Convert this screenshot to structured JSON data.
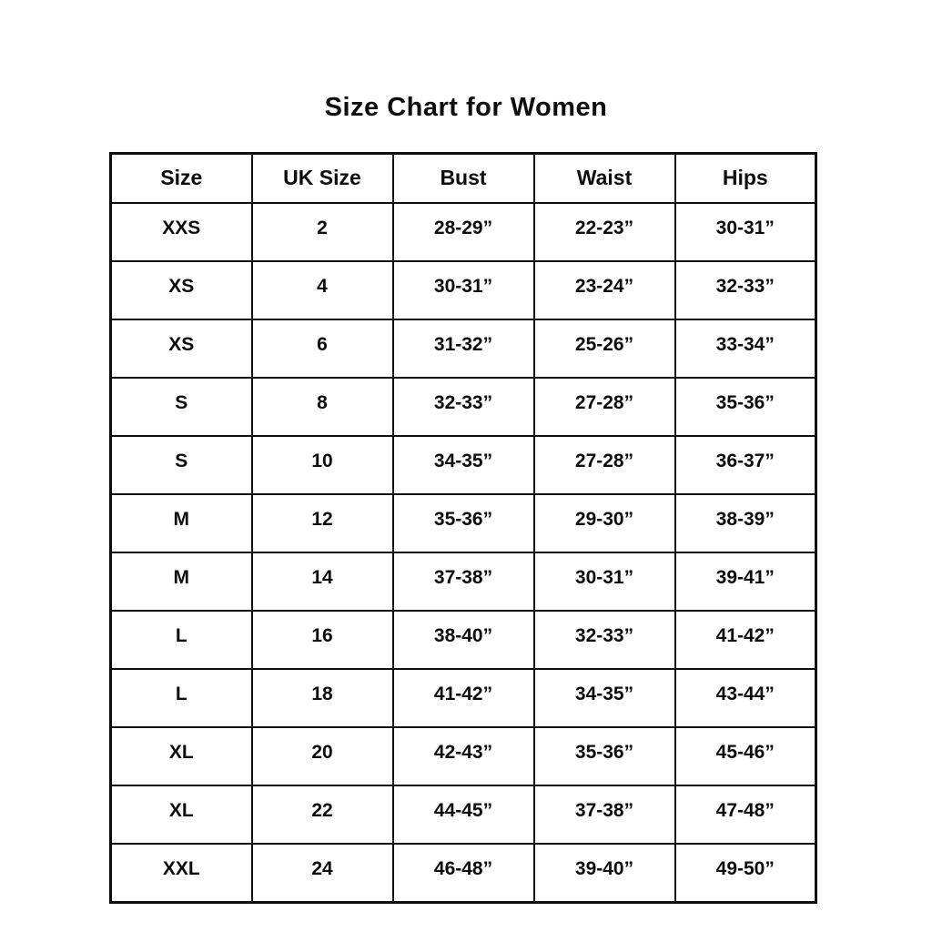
{
  "title": "Size Chart for Women",
  "colors": {
    "background": "#ffffff",
    "text": "#0d0d0d",
    "border": "#0d0d0d"
  },
  "chart_data": {
    "type": "table",
    "title": "Size Chart for Women",
    "headers": [
      "Size",
      "UK Size",
      "Bust",
      "Waist",
      "Hips"
    ],
    "rows": [
      [
        "XXS",
        "2",
        "28-29”",
        "22-23”",
        "30-31”"
      ],
      [
        "XS",
        "4",
        "30-31”",
        "23-24”",
        "32-33”"
      ],
      [
        "XS",
        "6",
        "31-32”",
        "25-26”",
        "33-34”"
      ],
      [
        "S",
        "8",
        "32-33”",
        "27-28”",
        "35-36”"
      ],
      [
        "S",
        "10",
        "34-35”",
        "27-28”",
        "36-37”"
      ],
      [
        "M",
        "12",
        "35-36”",
        "29-30”",
        "38-39”"
      ],
      [
        "M",
        "14",
        "37-38”",
        "30-31”",
        "39-41”"
      ],
      [
        "L",
        "16",
        "38-40”",
        "32-33”",
        "41-42”"
      ],
      [
        "L",
        "18",
        "41-42”",
        "34-35”",
        "43-44”"
      ],
      [
        "XL",
        "20",
        "42-43”",
        "35-36”",
        "45-46”"
      ],
      [
        "XL",
        "22",
        "44-45”",
        "37-38”",
        "47-48”"
      ],
      [
        "XXL",
        "24",
        "46-48”",
        "39-40”",
        "49-50”"
      ]
    ]
  }
}
